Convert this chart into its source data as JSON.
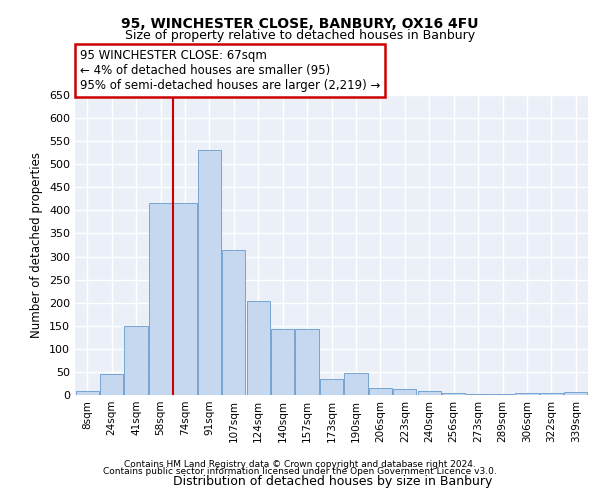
{
  "title1": "95, WINCHESTER CLOSE, BANBURY, OX16 4FU",
  "title2": "Size of property relative to detached houses in Banbury",
  "xlabel": "Distribution of detached houses by size in Banbury",
  "ylabel": "Number of detached properties",
  "categories": [
    "8sqm",
    "24sqm",
    "41sqm",
    "58sqm",
    "74sqm",
    "91sqm",
    "107sqm",
    "124sqm",
    "140sqm",
    "157sqm",
    "173sqm",
    "190sqm",
    "206sqm",
    "223sqm",
    "240sqm",
    "256sqm",
    "273sqm",
    "289sqm",
    "306sqm",
    "322sqm",
    "339sqm"
  ],
  "values": [
    8,
    45,
    150,
    415,
    415,
    530,
    315,
    203,
    143,
    143,
    35,
    48,
    15,
    13,
    8,
    5,
    3,
    3,
    5,
    5,
    7
  ],
  "bar_color": "#c5d8f0",
  "bar_edge_color": "#6699cc",
  "annotation_line1": "95 WINCHESTER CLOSE: 67sqm",
  "annotation_line2": "← 4% of detached houses are smaller (95)",
  "annotation_line3": "95% of semi-detached houses are larger (2,219) →",
  "annotation_box_color": "#ffffff",
  "annotation_box_edge_color": "#cc0000",
  "vline_index": 4,
  "footer1": "Contains HM Land Registry data © Crown copyright and database right 2024.",
  "footer2": "Contains public sector information licensed under the Open Government Licence v3.0.",
  "ylim": [
    0,
    650
  ],
  "yticks": [
    0,
    50,
    100,
    150,
    200,
    250,
    300,
    350,
    400,
    450,
    500,
    550,
    600,
    650
  ],
  "plot_bg_color": "#eaeff8",
  "grid_color": "#ffffff",
  "vline_color": "#cc0000"
}
